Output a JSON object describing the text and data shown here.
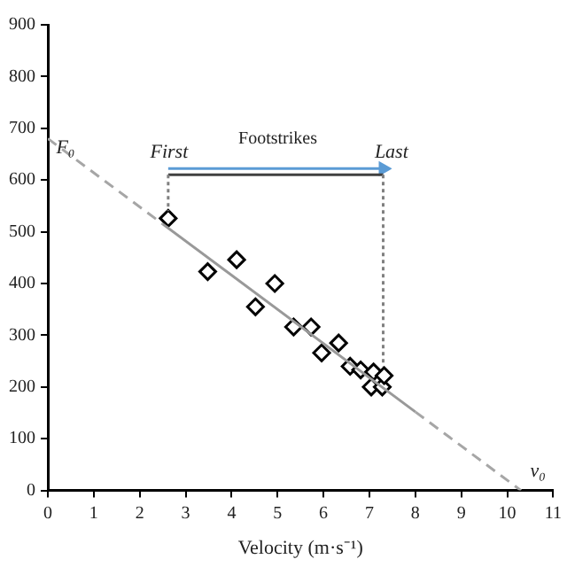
{
  "chart_data": {
    "type": "scatter",
    "xlabel": "Velocity (m·s⁻¹)",
    "xlim": [
      0,
      11
    ],
    "xticks": [
      0,
      1,
      2,
      3,
      4,
      5,
      6,
      7,
      8,
      9,
      10,
      11
    ],
    "ylim": [
      0,
      900
    ],
    "yticks": [
      0,
      100,
      200,
      300,
      400,
      500,
      600,
      700,
      800,
      900
    ],
    "grid": false,
    "legend": false,
    "series": [
      {
        "type": "line",
        "color": "#a6a6a6",
        "line_style": "dashed",
        "marker": "none",
        "x": [
          0,
          2.5
        ],
        "values": [
          680,
          515
        ]
      },
      {
        "type": "line",
        "color": "#a6a6a6",
        "line_style": "dashed",
        "marker": "none",
        "x": [
          8,
          10.3
        ],
        "values": [
          152,
          0
        ]
      },
      {
        "type": "line",
        "color": "#999999",
        "line_style": "solid",
        "marker": "none",
        "x": [
          2.5,
          8
        ],
        "values": [
          515,
          152
        ]
      },
      {
        "type": "line",
        "color": "#808080",
        "line_style": "dotted",
        "marker": "none",
        "x": [
          2.62,
          2.62
        ],
        "values": [
          610,
          540
        ]
      },
      {
        "type": "line",
        "color": "#808080",
        "line_style": "dotted",
        "marker": "none",
        "x": [
          7.3,
          7.3
        ],
        "values": [
          610,
          240
        ]
      },
      {
        "type": "line",
        "color": "#404040",
        "line_style": "solid",
        "marker": "none",
        "x": [
          2.62,
          7.3
        ],
        "values": [
          610,
          610
        ]
      },
      {
        "type": "line",
        "color": "#5b9bd5",
        "line_style": "solid",
        "marker": "triangle",
        "x": [
          2.62,
          7.3
        ],
        "values": [
          622,
          622
        ]
      },
      {
        "type": "scatter",
        "color": "#000000",
        "marker": "diamond",
        "x": [
          2.62,
          3.48,
          4.11,
          4.52,
          4.94,
          5.35,
          5.73,
          5.96,
          6.33,
          6.58,
          6.81,
          7.04,
          7.09,
          7.28,
          7.32
        ],
        "values": [
          526,
          423,
          446,
          355,
          400,
          316,
          316,
          266,
          285,
          240,
          233,
          200,
          229,
          200,
          222
        ]
      }
    ],
    "annotations": [
      "F₀",
      "First",
      "Footstrikes",
      "Last",
      "v₀"
    ]
  }
}
